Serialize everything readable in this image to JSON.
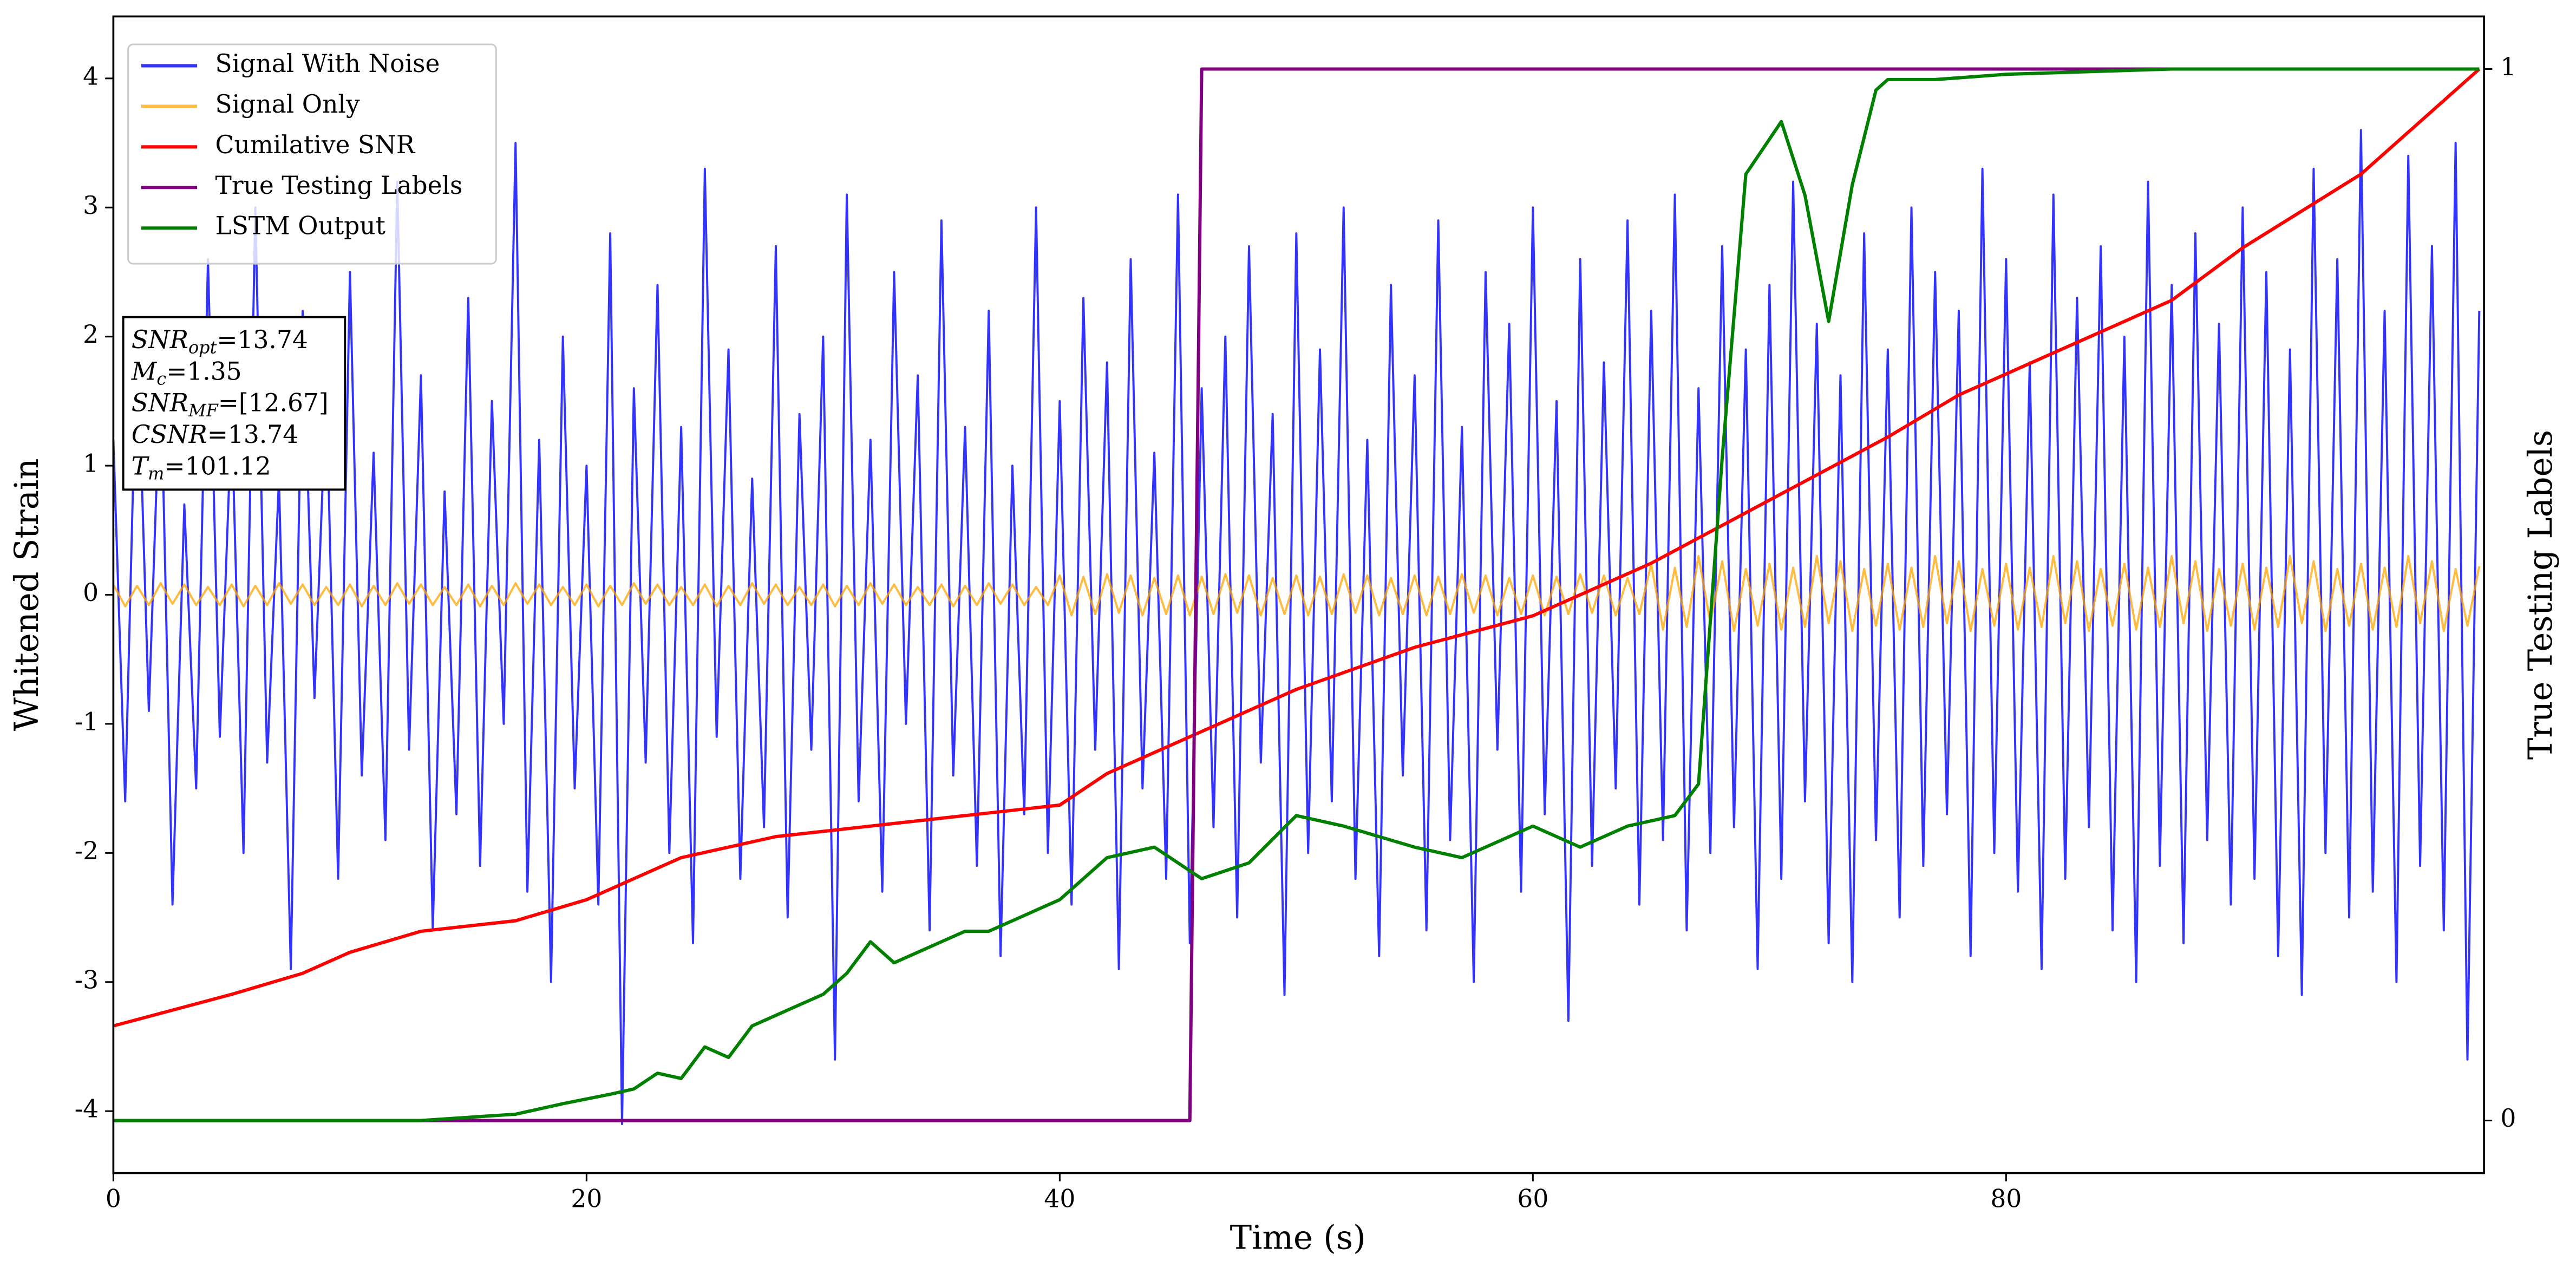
{
  "chart_data": {
    "type": "line",
    "xlabel": "Time (s)",
    "ylabel": "Whitened Strain",
    "y2label": "True Testing Labels",
    "xlim": [
      0,
      100.2
    ],
    "ylim": [
      -4.48,
      4.48
    ],
    "y2lim": [
      -0.05,
      1.05
    ],
    "xticks": [
      0,
      20,
      40,
      60,
      80
    ],
    "yticks": [
      -4,
      -3,
      -2,
      -1,
      0,
      1,
      2,
      3,
      4
    ],
    "y2ticks": [
      0,
      1
    ],
    "grid": false,
    "legend": "upper left",
    "x": [
      0,
      0.5,
      1,
      1.5,
      2,
      2.5,
      3,
      3.5,
      4,
      4.5,
      5,
      5.5,
      6,
      6.5,
      7,
      7.5,
      8,
      8.5,
      9,
      9.5,
      10,
      10.5,
      11,
      11.5,
      12,
      12.5,
      13,
      13.5,
      14,
      14.5,
      15,
      15.5,
      16,
      16.5,
      17,
      17.5,
      18,
      18.5,
      19,
      19.5,
      20,
      20.5,
      21,
      21.5,
      22,
      22.5,
      23,
      23.5,
      24,
      24.5,
      25,
      25.5,
      26,
      26.5,
      27,
      27.5,
      28,
      28.5,
      29,
      29.5,
      30,
      30.5,
      31,
      31.5,
      32,
      32.5,
      33,
      33.5,
      34,
      34.5,
      35,
      35.5,
      36,
      36.5,
      37,
      37.5,
      38,
      38.5,
      39,
      39.5,
      40,
      40.5,
      41,
      41.5,
      42,
      42.5,
      43,
      43.5,
      44,
      44.5,
      45,
      45.5,
      46,
      46.5,
      47,
      47.5,
      48,
      48.5,
      49,
      49.5,
      50,
      50.5,
      51,
      51.5,
      52,
      52.5,
      53,
      53.5,
      54,
      54.5,
      55,
      55.5,
      56,
      56.5,
      57,
      57.5,
      58,
      58.5,
      59,
      59.5,
      60,
      60.5,
      61,
      61.5,
      62,
      62.5,
      63,
      63.5,
      64,
      64.5,
      65,
      65.5,
      66,
      66.5,
      67,
      67.5,
      68,
      68.5,
      69,
      69.5,
      70,
      70.5,
      71,
      71.5,
      72,
      72.5,
      73,
      73.5,
      74,
      74.5,
      75,
      75.5,
      76,
      76.5,
      77,
      77.5,
      78,
      78.5,
      79,
      79.5,
      80,
      80.5,
      81,
      81.5,
      82,
      82.5,
      83,
      83.5,
      84,
      84.5,
      85,
      85.5,
      86,
      86.5,
      87,
      87.5,
      88,
      88.5,
      89,
      89.5,
      90,
      90.5,
      91,
      91.5,
      92,
      92.5,
      93,
      93.5,
      94,
      94.5,
      95,
      95.5,
      96,
      96.5,
      97,
      97.5,
      98,
      98.5,
      99,
      99.5,
      100
    ],
    "series": [
      {
        "name": "Signal With Noise",
        "color": "#0000ff",
        "opacity": 0.8,
        "values": [
          1.2,
          -1.6,
          2.1,
          -0.9,
          1.8,
          -2.4,
          0.7,
          -1.5,
          2.6,
          -1.1,
          1.4,
          -2.0,
          3.0,
          -1.3,
          0.9,
          -2.9,
          2.2,
          -0.8,
          1.6,
          -2.2,
          2.5,
          -1.4,
          1.1,
          -1.9,
          3.2,
          -1.2,
          1.7,
          -2.6,
          0.8,
          -1.7,
          2.3,
          -2.1,
          1.5,
          -1.0,
          3.5,
          -2.3,
          1.2,
          -3.0,
          2.0,
          -1.5,
          1.0,
          -2.4,
          2.8,
          -4.1,
          1.6,
          -1.3,
          2.4,
          -2.0,
          1.3,
          -2.7,
          3.3,
          -1.1,
          1.9,
          -2.2,
          0.9,
          -1.8,
          2.7,
          -2.5,
          1.4,
          -1.2,
          2.0,
          -3.6,
          3.1,
          -1.6,
          1.2,
          -2.3,
          2.5,
          -1.0,
          1.7,
          -2.6,
          2.9,
          -1.4,
          1.3,
          -2.1,
          2.2,
          -2.8,
          1.0,
          -1.7,
          3.0,
          -2.0,
          1.5,
          -2.4,
          2.3,
          -1.2,
          1.8,
          -2.9,
          2.6,
          -1.5,
          1.1,
          -2.2,
          3.1,
          -2.7,
          1.6,
          -1.8,
          2.0,
          -2.5,
          2.7,
          -1.3,
          1.4,
          -3.1,
          2.8,
          -2.0,
          1.9,
          -1.6,
          3.0,
          -2.2,
          1.2,
          -2.8,
          2.4,
          -1.4,
          1.7,
          -2.6,
          2.9,
          -1.9,
          1.3,
          -3.0,
          2.5,
          -1.2,
          2.1,
          -2.3,
          3.0,
          -1.7,
          1.5,
          -3.3,
          2.6,
          -2.1,
          1.8,
          -1.5,
          2.9,
          -2.4,
          2.2,
          -1.9,
          3.1,
          -2.6,
          1.6,
          -2.0,
          2.7,
          -1.8,
          1.9,
          -2.9,
          2.4,
          -2.2,
          3.2,
          -1.6,
          2.1,
          -2.7,
          1.7,
          -3.0,
          2.8,
          -1.9,
          1.9,
          -2.5,
          3.0,
          -2.1,
          2.5,
          -1.7,
          2.2,
          -2.8,
          3.3,
          -2.0,
          2.6,
          -2.3,
          1.8,
          -2.9,
          3.1,
          -2.2,
          2.3,
          -1.8,
          2.7,
          -2.6,
          2.0,
          -3.0,
          3.2,
          -2.1,
          2.4,
          -2.7,
          2.8,
          -1.9,
          2.1,
          -2.4,
          3.0,
          -2.2,
          2.5,
          -2.8,
          1.9,
          -3.1,
          3.3,
          -2.0,
          2.6,
          -2.5,
          3.6,
          -2.3,
          2.2,
          -3.0,
          3.4,
          -2.1,
          2.7,
          -2.6,
          3.5,
          -3.6,
          2.2
        ]
      },
      {
        "name": "Signal Only",
        "color": "#ffa500",
        "opacity": 0.75,
        "values": [
          0.08,
          -0.09,
          0.07,
          -0.08,
          0.09,
          -0.07,
          0.08,
          -0.08,
          0.06,
          -0.08,
          0.08,
          -0.09,
          0.07,
          -0.08,
          0.09,
          -0.07,
          0.08,
          -0.08,
          0.06,
          -0.08,
          0.08,
          -0.09,
          0.07,
          -0.08,
          0.09,
          -0.07,
          0.08,
          -0.08,
          0.06,
          -0.08,
          0.08,
          -0.09,
          0.07,
          -0.08,
          0.09,
          -0.07,
          0.08,
          -0.08,
          0.06,
          -0.08,
          0.08,
          -0.09,
          0.07,
          -0.08,
          0.09,
          -0.07,
          0.08,
          -0.08,
          0.06,
          -0.08,
          0.08,
          -0.09,
          0.07,
          -0.08,
          0.09,
          -0.07,
          0.08,
          -0.08,
          0.06,
          -0.08,
          0.08,
          -0.09,
          0.07,
          -0.08,
          0.09,
          -0.07,
          0.08,
          -0.08,
          0.06,
          -0.08,
          0.08,
          -0.09,
          0.07,
          -0.08,
          0.09,
          -0.07,
          0.08,
          -0.08,
          0.06,
          -0.08,
          0.15,
          -0.16,
          0.14,
          -0.15,
          0.16,
          -0.14,
          0.15,
          -0.16,
          0.13,
          -0.15,
          0.15,
          -0.16,
          0.14,
          -0.15,
          0.16,
          -0.14,
          0.15,
          -0.16,
          0.13,
          -0.15,
          0.15,
          -0.16,
          0.14,
          -0.15,
          0.16,
          -0.14,
          0.15,
          -0.16,
          0.13,
          -0.15,
          0.15,
          -0.16,
          0.14,
          -0.15,
          0.16,
          -0.14,
          0.15,
          -0.16,
          0.13,
          -0.15,
          0.15,
          -0.16,
          0.14,
          -0.15,
          0.16,
          -0.14,
          0.15,
          -0.16,
          0.13,
          -0.15,
          0.24,
          -0.27,
          0.21,
          -0.25,
          0.3,
          -0.22,
          0.26,
          -0.28,
          0.2,
          -0.24,
          0.24,
          -0.27,
          0.21,
          -0.25,
          0.3,
          -0.22,
          0.26,
          -0.28,
          0.2,
          -0.24,
          0.24,
          -0.27,
          0.21,
          -0.25,
          0.3,
          -0.22,
          0.26,
          -0.28,
          0.2,
          -0.24,
          0.24,
          -0.27,
          0.21,
          -0.25,
          0.3,
          -0.22,
          0.26,
          -0.28,
          0.2,
          -0.24,
          0.24,
          -0.27,
          0.21,
          -0.25,
          0.3,
          -0.22,
          0.26,
          -0.28,
          0.2,
          -0.24,
          0.24,
          -0.27,
          0.21,
          -0.25,
          0.3,
          -0.22,
          0.26,
          -0.28,
          0.2,
          -0.24,
          0.24,
          -0.27,
          0.21,
          -0.25,
          0.3,
          -0.22,
          0.26,
          -0.28,
          0.2,
          -0.24,
          0.22
        ]
      },
      {
        "name": "Cumilative SNR",
        "color": "#ff0000",
        "axis": "y2",
        "x": [
          0,
          5,
          8,
          10,
          13,
          17,
          20,
          24,
          28,
          32,
          36,
          40,
          42,
          46,
          50,
          55,
          60,
          65,
          70,
          75,
          78,
          80,
          83,
          87,
          90,
          95,
          100
        ],
        "values": [
          0.09,
          0.12,
          0.14,
          0.16,
          0.18,
          0.19,
          0.21,
          0.25,
          0.27,
          0.28,
          0.29,
          0.3,
          0.33,
          0.37,
          0.41,
          0.45,
          0.48,
          0.53,
          0.59,
          0.65,
          0.69,
          0.71,
          0.74,
          0.78,
          0.83,
          0.9,
          1.0
        ]
      },
      {
        "name": "True Testing Labels",
        "color": "#800080",
        "axis": "y2",
        "x": [
          0,
          45.5,
          46,
          100
        ],
        "values": [
          0,
          0,
          1,
          1
        ]
      },
      {
        "name": "LSTM Output",
        "color": "#008000",
        "axis": "y2",
        "x": [
          0,
          13,
          15,
          17,
          19,
          21,
          22,
          23,
          24,
          25,
          26,
          27,
          28,
          29,
          30,
          31,
          32,
          33,
          34,
          35,
          36,
          37,
          40,
          42,
          44,
          46,
          48,
          50,
          52,
          55,
          57,
          60,
          62,
          64,
          66,
          67,
          68,
          69,
          70.5,
          71.5,
          72.5,
          73.5,
          74.5,
          75,
          77,
          80,
          87,
          100
        ],
        "values": [
          0,
          0,
          0.003,
          0.006,
          0.016,
          0.025,
          0.03,
          0.045,
          0.04,
          0.07,
          0.06,
          0.09,
          0.1,
          0.11,
          0.12,
          0.14,
          0.17,
          0.15,
          0.16,
          0.17,
          0.18,
          0.18,
          0.21,
          0.25,
          0.26,
          0.23,
          0.245,
          0.29,
          0.28,
          0.26,
          0.25,
          0.28,
          0.26,
          0.28,
          0.29,
          0.32,
          0.63,
          0.9,
          0.95,
          0.88,
          0.76,
          0.89,
          0.98,
          0.99,
          0.99,
          0.995,
          1.0,
          1.0
        ]
      }
    ],
    "annotation": [
      {
        "name": "SNR",
        "sub": "opt",
        "text": "=13.74"
      },
      {
        "name": "M",
        "sub": "c",
        "text": "=1.35"
      },
      {
        "name": "SNR",
        "sub": "MF",
        "text": "=[12.67]"
      },
      {
        "name": "CSNR",
        "text": "=13.74"
      },
      {
        "name": "T",
        "sub": "m",
        "text": "=101.12"
      }
    ]
  }
}
